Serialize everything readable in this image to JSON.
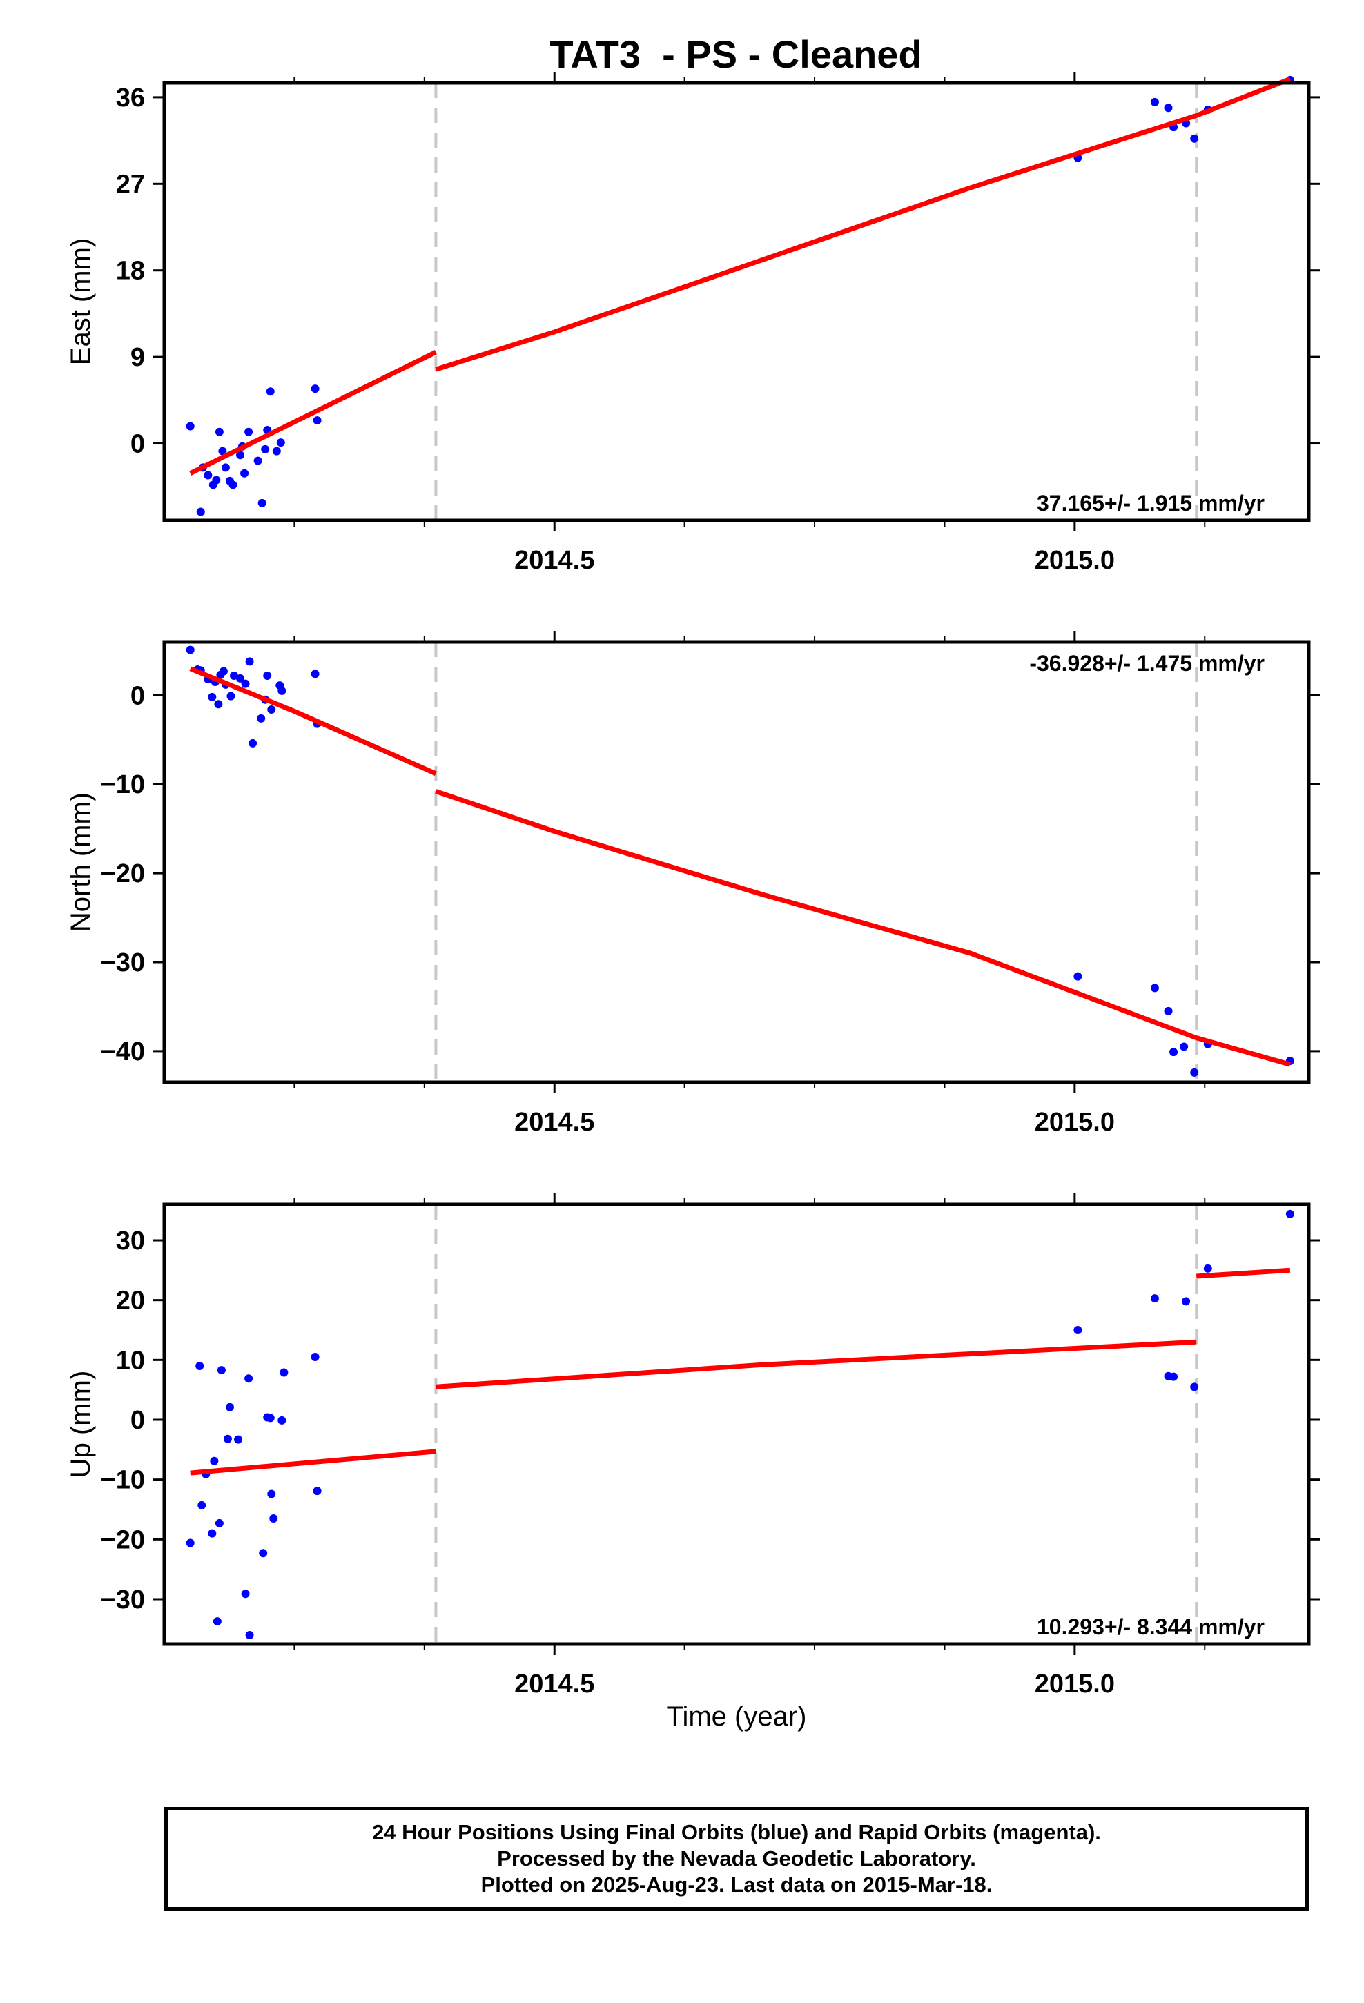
{
  "title": "TAT3  - PS - Cleaned",
  "footer": {
    "line1": "24 Hour Positions Using Final Orbits (blue) and Rapid Orbits (magenta).",
    "line2": "Processed by the Nevada Geodetic Laboratory.",
    "line3": "Plotted on 2025-Aug-23. Last data on 2015-Mar-18."
  },
  "colors": {
    "points": "#0000ff",
    "fit": "#ff0000",
    "breaks": "#c8c8c8",
    "frame": "#000000"
  },
  "chart_data": [
    {
      "type": "scatter",
      "ylabel": "East (mm)",
      "rate_label": "37.165+/- 1.915 mm/yr",
      "rate_position": "bottom-right",
      "xlim": [
        2014.125,
        2015.225
      ],
      "ylim": [
        -8,
        37.5
      ],
      "xticks": [
        2014.5,
        2015.0
      ],
      "yticks": [
        0,
        9,
        18,
        27,
        36
      ],
      "yticklabels": [
        "0",
        "9",
        "18",
        "27",
        "36"
      ],
      "breaks": [
        2014.386,
        2015.117
      ],
      "points": [
        [
          2014.15,
          1.8
        ],
        [
          2014.16,
          -7.1
        ],
        [
          2014.162,
          -2.5
        ],
        [
          2014.167,
          -3.3
        ],
        [
          2014.172,
          -4.3
        ],
        [
          2014.175,
          -3.8
        ],
        [
          2014.178,
          1.2
        ],
        [
          2014.181,
          -0.8
        ],
        [
          2014.184,
          -2.5
        ],
        [
          2014.188,
          -3.9
        ],
        [
          2014.191,
          -4.3
        ],
        [
          2014.198,
          -1.2
        ],
        [
          2014.2,
          -0.3
        ],
        [
          2014.202,
          -3.1
        ],
        [
          2014.206,
          1.2
        ],
        [
          2014.215,
          -1.8
        ],
        [
          2014.219,
          -6.2
        ],
        [
          2014.222,
          -0.6
        ],
        [
          2014.224,
          1.4
        ],
        [
          2014.227,
          5.4
        ],
        [
          2014.233,
          -0.8
        ],
        [
          2014.237,
          0.1
        ],
        [
          2014.27,
          5.7
        ],
        [
          2014.272,
          2.4
        ],
        [
          2015.003,
          29.7
        ],
        [
          2015.077,
          35.5
        ],
        [
          2015.09,
          34.9
        ],
        [
          2015.095,
          32.9
        ],
        [
          2015.107,
          33.3
        ],
        [
          2015.115,
          31.7
        ],
        [
          2015.128,
          34.7
        ],
        [
          2015.207,
          37.8
        ]
      ],
      "fit_segments": [
        [
          [
            2014.15,
            -3.1
          ],
          [
            2014.386,
            9.5
          ]
        ],
        [
          [
            2014.386,
            7.7
          ],
          [
            2014.5,
            11.6
          ],
          [
            2014.7,
            19.1
          ],
          [
            2014.9,
            26.6
          ],
          [
            2015.117,
            34.1
          ]
        ],
        [
          [
            2015.117,
            34.1
          ],
          [
            2015.207,
            37.9
          ]
        ]
      ]
    },
    {
      "type": "scatter",
      "ylabel": "North (mm)",
      "rate_label": "-36.928+/- 1.475 mm/yr",
      "rate_position": "top-right",
      "xlim": [
        2014.125,
        2015.225
      ],
      "ylim": [
        -43.5,
        6
      ],
      "xticks": [
        2014.5,
        2015.0
      ],
      "yticks": [
        0,
        -10,
        -20,
        -30,
        -40
      ],
      "yticklabels": [
        "0",
        "−10",
        "−20",
        "−30",
        "−40"
      ],
      "breaks": [
        2014.386,
        2015.117
      ],
      "points": [
        [
          2014.15,
          5.1
        ],
        [
          2014.157,
          2.9
        ],
        [
          2014.16,
          2.8
        ],
        [
          2014.167,
          1.8
        ],
        [
          2014.171,
          -0.2
        ],
        [
          2014.174,
          1.5
        ],
        [
          2014.177,
          -1.0
        ],
        [
          2014.179,
          2.3
        ],
        [
          2014.182,
          2.7
        ],
        [
          2014.184,
          1.2
        ],
        [
          2014.189,
          -0.1
        ],
        [
          2014.192,
          2.2
        ],
        [
          2014.198,
          1.9
        ],
        [
          2014.203,
          1.3
        ],
        [
          2014.207,
          3.8
        ],
        [
          2014.21,
          -5.4
        ],
        [
          2014.218,
          -2.6
        ],
        [
          2014.222,
          -0.5
        ],
        [
          2014.224,
          2.2
        ],
        [
          2014.228,
          -1.6
        ],
        [
          2014.236,
          1.1
        ],
        [
          2014.238,
          0.5
        ],
        [
          2014.27,
          2.4
        ],
        [
          2014.272,
          -3.2
        ],
        [
          2015.003,
          -31.6
        ],
        [
          2015.077,
          -32.9
        ],
        [
          2015.09,
          -35.5
        ],
        [
          2015.095,
          -40.1
        ],
        [
          2015.105,
          -39.5
        ],
        [
          2015.115,
          -42.4
        ],
        [
          2015.128,
          -39.2
        ],
        [
          2015.207,
          -41.1
        ]
      ],
      "fit_segments": [
        [
          [
            2014.15,
            3.0
          ],
          [
            2014.25,
            -1.8
          ],
          [
            2014.386,
            -8.8
          ]
        ],
        [
          [
            2014.386,
            -10.8
          ],
          [
            2014.5,
            -15.3
          ],
          [
            2014.7,
            -22.4
          ],
          [
            2014.9,
            -29.0
          ],
          [
            2015.117,
            -38.5
          ]
        ],
        [
          [
            2015.117,
            -38.5
          ],
          [
            2015.207,
            -41.5
          ]
        ]
      ]
    },
    {
      "type": "scatter",
      "ylabel": "Up (mm)",
      "xlabel": "Time (year)",
      "rate_label": "10.293+/- 8.344 mm/yr",
      "rate_position": "bottom-right",
      "xlim": [
        2014.125,
        2015.225
      ],
      "ylim": [
        -37.5,
        36
      ],
      "xticks": [
        2014.5,
        2015.0
      ],
      "yticks": [
        30,
        20,
        10,
        0,
        -10,
        -20,
        -30
      ],
      "yticklabels": [
        "30",
        "20",
        "10",
        "0",
        "−10",
        "−20",
        "−30"
      ],
      "breaks": [
        2014.386,
        2015.117
      ],
      "points": [
        [
          2014.15,
          -20.6
        ],
        [
          2014.159,
          9.0
        ],
        [
          2014.161,
          -14.3
        ],
        [
          2014.165,
          -9.1
        ],
        [
          2014.171,
          -19.0
        ],
        [
          2014.173,
          -6.9
        ],
        [
          2014.176,
          -33.7
        ],
        [
          2014.178,
          -17.3
        ],
        [
          2014.18,
          8.3
        ],
        [
          2014.186,
          -3.2
        ],
        [
          2014.188,
          2.1
        ],
        [
          2014.196,
          -3.3
        ],
        [
          2014.203,
          -29.1
        ],
        [
          2014.206,
          6.9
        ],
        [
          2014.207,
          -36.0
        ],
        [
          2014.22,
          -22.3
        ],
        [
          2014.224,
          0.4
        ],
        [
          2014.227,
          0.3
        ],
        [
          2014.228,
          -12.4
        ],
        [
          2014.23,
          -16.5
        ],
        [
          2014.238,
          -0.1
        ],
        [
          2014.24,
          7.9
        ],
        [
          2014.27,
          10.5
        ],
        [
          2014.272,
          -11.9
        ],
        [
          2015.003,
          15.0
        ],
        [
          2015.077,
          20.3
        ],
        [
          2015.09,
          7.3
        ],
        [
          2015.095,
          7.2
        ],
        [
          2015.107,
          19.8
        ],
        [
          2015.115,
          5.5
        ],
        [
          2015.128,
          25.3
        ],
        [
          2015.207,
          34.4
        ]
      ],
      "fit_segments": [
        [
          [
            2014.15,
            -8.9
          ],
          [
            2014.386,
            -5.3
          ]
        ],
        [
          [
            2014.386,
            5.5
          ],
          [
            2014.7,
            9.2
          ],
          [
            2015.117,
            13.0
          ]
        ],
        [
          [
            2015.117,
            24.0
          ],
          [
            2015.207,
            25.0
          ]
        ]
      ]
    }
  ]
}
